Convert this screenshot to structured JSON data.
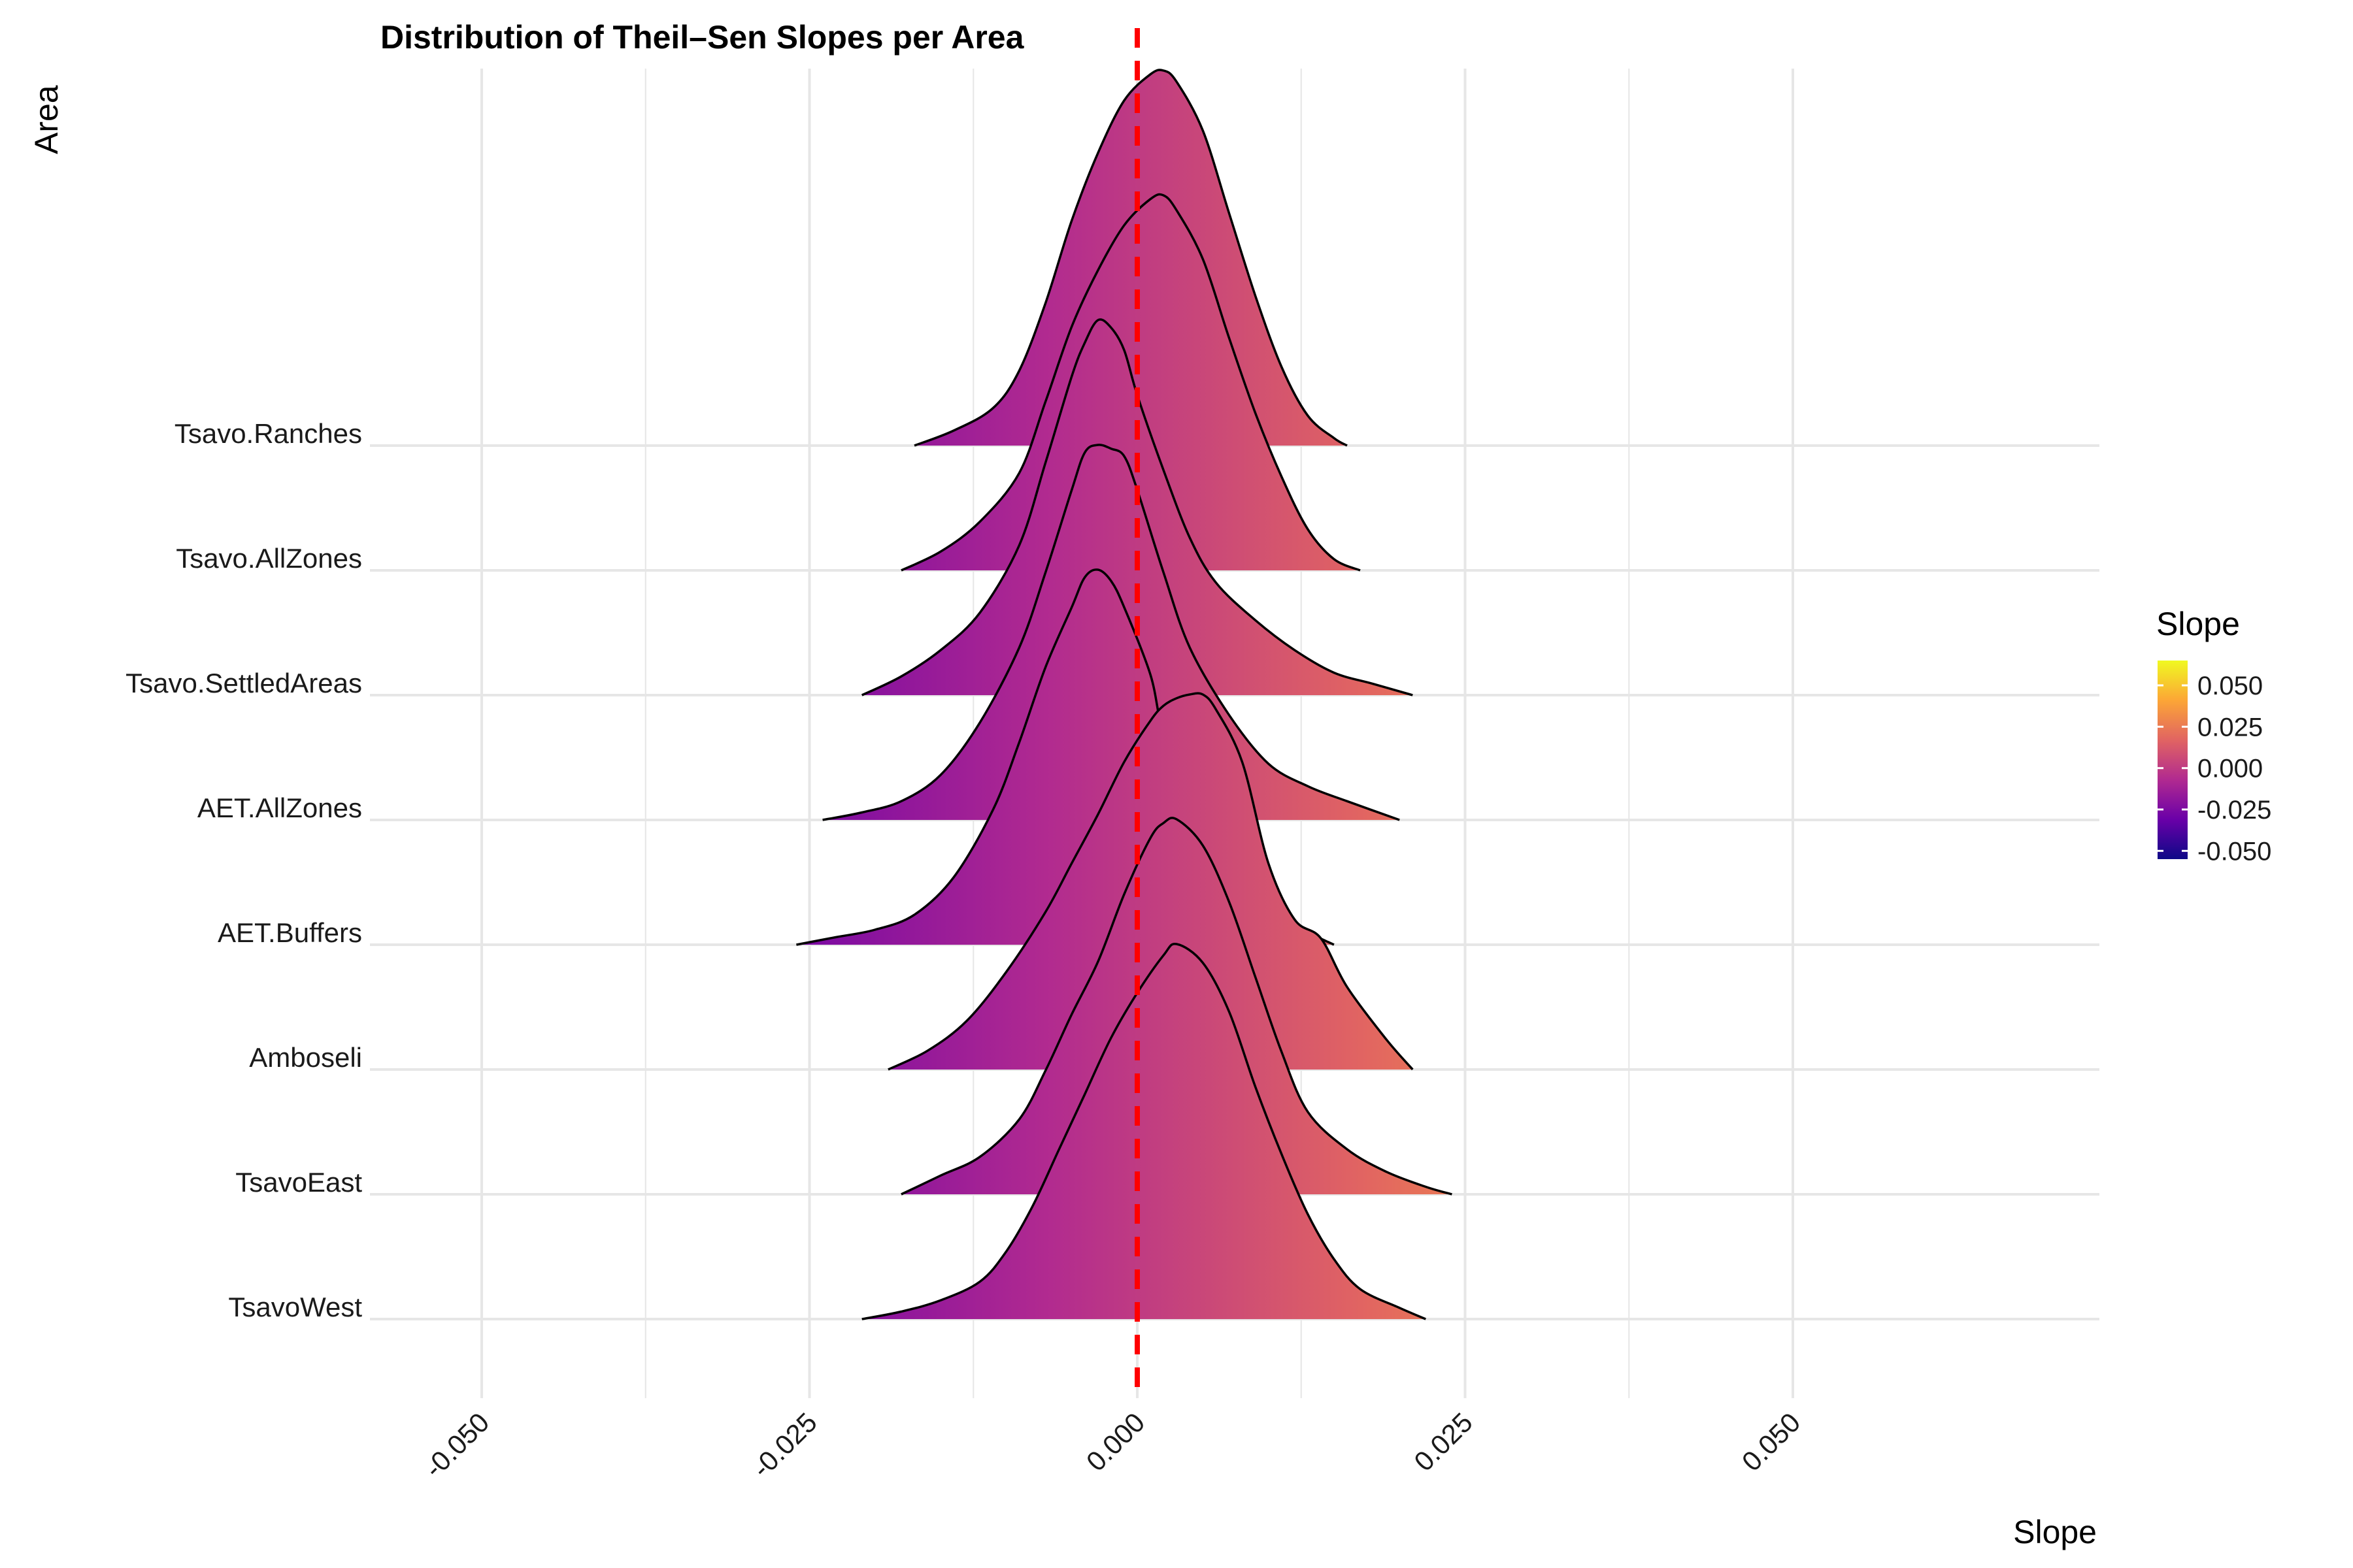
{
  "chart_data": {
    "type": "ridgeline",
    "title": "Distribution of Theil–Sen Slopes per Area",
    "xlabel": "Slope",
    "ylabel": "Area",
    "xlim": [
      -0.067,
      0.073
    ],
    "x_ticks": [
      -0.05,
      -0.025,
      0.0,
      0.025,
      0.05
    ],
    "x_tick_labels": [
      "-0.050",
      "-0.025",
      "0.000",
      "0.025",
      "0.050"
    ],
    "reference_line": {
      "x": 0.0,
      "color": "#ff0000",
      "style": "dashed"
    },
    "grid": true,
    "legend": {
      "title": "Slope",
      "position": "right",
      "palette": "plasma",
      "range": [
        -0.055,
        0.065
      ],
      "ticks": [
        0.05,
        0.025,
        0.0,
        -0.025,
        -0.05
      ],
      "tick_labels": [
        "0.050",
        "0.025",
        "0.000",
        "-0.025",
        "-0.050"
      ],
      "colors": [
        "#0d0887",
        "#6a00a8",
        "#b12a90",
        "#e16462",
        "#fca636",
        "#f0f921"
      ]
    },
    "categories": [
      "Tsavo.Ranches",
      "Tsavo.AllZones",
      "Tsavo.SettledAreas",
      "AET.AllZones",
      "AET.Buffers",
      "Amboseli",
      "TsavoEast",
      "TsavoWest"
    ],
    "series": [
      {
        "name": "Tsavo.Ranches",
        "density": [
          [
            -0.017,
            0
          ],
          [
            -0.014,
            0.04
          ],
          [
            -0.011,
            0.1
          ],
          [
            -0.009,
            0.2
          ],
          [
            -0.007,
            0.38
          ],
          [
            -0.005,
            0.6
          ],
          [
            -0.003,
            0.78
          ],
          [
            -0.001,
            0.92
          ],
          [
            0.001,
            0.99
          ],
          [
            0.002,
            1.0
          ],
          [
            0.003,
            0.97
          ],
          [
            0.005,
            0.84
          ],
          [
            0.007,
            0.62
          ],
          [
            0.009,
            0.4
          ],
          [
            0.011,
            0.21
          ],
          [
            0.013,
            0.08
          ],
          [
            0.015,
            0.02
          ],
          [
            0.016,
            0
          ]
        ]
      },
      {
        "name": "Tsavo.AllZones",
        "density": [
          [
            -0.018,
            0
          ],
          [
            -0.015,
            0.05
          ],
          [
            -0.012,
            0.13
          ],
          [
            -0.009,
            0.26
          ],
          [
            -0.007,
            0.45
          ],
          [
            -0.005,
            0.65
          ],
          [
            -0.003,
            0.8
          ],
          [
            -0.001,
            0.92
          ],
          [
            0.001,
            0.99
          ],
          [
            0.002,
            1.0
          ],
          [
            0.003,
            0.96
          ],
          [
            0.005,
            0.83
          ],
          [
            0.007,
            0.62
          ],
          [
            0.009,
            0.42
          ],
          [
            0.011,
            0.25
          ],
          [
            0.013,
            0.11
          ],
          [
            0.015,
            0.03
          ],
          [
            0.017,
            0
          ]
        ]
      },
      {
        "name": "Tsavo.SettledAreas",
        "density": [
          [
            -0.021,
            0
          ],
          [
            -0.018,
            0.05
          ],
          [
            -0.015,
            0.12
          ],
          [
            -0.012,
            0.22
          ],
          [
            -0.009,
            0.4
          ],
          [
            -0.007,
            0.62
          ],
          [
            -0.005,
            0.85
          ],
          [
            -0.004,
            0.94
          ],
          [
            -0.003,
            1.0
          ],
          [
            -0.002,
            0.98
          ],
          [
            -0.001,
            0.92
          ],
          [
            0.0,
            0.8
          ],
          [
            0.002,
            0.6
          ],
          [
            0.004,
            0.42
          ],
          [
            0.006,
            0.3
          ],
          [
            0.009,
            0.2
          ],
          [
            0.012,
            0.12
          ],
          [
            0.015,
            0.06
          ],
          [
            0.018,
            0.03
          ],
          [
            0.021,
            0
          ]
        ]
      },
      {
        "name": "AET.AllZones",
        "density": [
          [
            -0.024,
            0
          ],
          [
            -0.021,
            0.02
          ],
          [
            -0.018,
            0.05
          ],
          [
            -0.015,
            0.12
          ],
          [
            -0.012,
            0.26
          ],
          [
            -0.009,
            0.46
          ],
          [
            -0.007,
            0.66
          ],
          [
            -0.005,
            0.88
          ],
          [
            -0.004,
            0.98
          ],
          [
            -0.003,
            1.0
          ],
          [
            -0.002,
            0.99
          ],
          [
            -0.001,
            0.97
          ],
          [
            0.0,
            0.88
          ],
          [
            0.002,
            0.66
          ],
          [
            0.004,
            0.46
          ],
          [
            0.007,
            0.28
          ],
          [
            0.01,
            0.15
          ],
          [
            0.013,
            0.09
          ],
          [
            0.016,
            0.05
          ],
          [
            0.02,
            0
          ]
        ]
      },
      {
        "name": "AET.Buffers",
        "density": [
          [
            -0.026,
            0
          ],
          [
            -0.023,
            0.02
          ],
          [
            -0.02,
            0.04
          ],
          [
            -0.017,
            0.08
          ],
          [
            -0.014,
            0.18
          ],
          [
            -0.011,
            0.36
          ],
          [
            -0.009,
            0.54
          ],
          [
            -0.007,
            0.74
          ],
          [
            -0.005,
            0.9
          ],
          [
            -0.004,
            0.98
          ],
          [
            -0.003,
            1.0
          ],
          [
            -0.002,
            0.97
          ],
          [
            -0.001,
            0.9
          ],
          [
            0.001,
            0.72
          ],
          [
            0.002,
            0.56
          ],
          [
            0.004,
            0.38
          ],
          [
            0.006,
            0.22
          ],
          [
            0.009,
            0.11
          ],
          [
            0.012,
            0.05
          ],
          [
            0.015,
            0
          ]
        ]
      },
      {
        "name": "Amboseli",
        "density": [
          [
            -0.019,
            0
          ],
          [
            -0.016,
            0.05
          ],
          [
            -0.013,
            0.13
          ],
          [
            -0.01,
            0.26
          ],
          [
            -0.007,
            0.42
          ],
          [
            -0.005,
            0.55
          ],
          [
            -0.003,
            0.68
          ],
          [
            -0.001,
            0.82
          ],
          [
            0.001,
            0.93
          ],
          [
            0.002,
            0.97
          ],
          [
            0.003,
            0.99
          ],
          [
            0.004,
            1.0
          ],
          [
            0.005,
            1.0
          ],
          [
            0.006,
            0.96
          ],
          [
            0.008,
            0.82
          ],
          [
            0.01,
            0.55
          ],
          [
            0.012,
            0.4
          ],
          [
            0.014,
            0.35
          ],
          [
            0.016,
            0.22
          ],
          [
            0.019,
            0.08
          ],
          [
            0.021,
            0
          ]
        ]
      },
      {
        "name": "TsavoEast",
        "density": [
          [
            -0.018,
            0
          ],
          [
            -0.015,
            0.05
          ],
          [
            -0.012,
            0.1
          ],
          [
            -0.009,
            0.2
          ],
          [
            -0.007,
            0.33
          ],
          [
            -0.005,
            0.48
          ],
          [
            -0.003,
            0.62
          ],
          [
            -0.001,
            0.8
          ],
          [
            0.001,
            0.95
          ],
          [
            0.002,
            0.99
          ],
          [
            0.003,
            1.0
          ],
          [
            0.005,
            0.93
          ],
          [
            0.007,
            0.78
          ],
          [
            0.009,
            0.58
          ],
          [
            0.011,
            0.38
          ],
          [
            0.013,
            0.22
          ],
          [
            0.016,
            0.12
          ],
          [
            0.019,
            0.06
          ],
          [
            0.022,
            0.02
          ],
          [
            0.024,
            0
          ]
        ]
      },
      {
        "name": "TsavoWest",
        "density": [
          [
            -0.021,
            0
          ],
          [
            -0.018,
            0.02
          ],
          [
            -0.015,
            0.05
          ],
          [
            -0.012,
            0.1
          ],
          [
            -0.01,
            0.18
          ],
          [
            -0.008,
            0.3
          ],
          [
            -0.006,
            0.45
          ],
          [
            -0.004,
            0.6
          ],
          [
            -0.002,
            0.75
          ],
          [
            0.0,
            0.87
          ],
          [
            0.002,
            0.97
          ],
          [
            0.003,
            1.0
          ],
          [
            0.005,
            0.95
          ],
          [
            0.007,
            0.82
          ],
          [
            0.009,
            0.62
          ],
          [
            0.011,
            0.44
          ],
          [
            0.013,
            0.28
          ],
          [
            0.015,
            0.16
          ],
          [
            0.017,
            0.08
          ],
          [
            0.02,
            0.03
          ],
          [
            0.022,
            0
          ]
        ]
      }
    ]
  }
}
